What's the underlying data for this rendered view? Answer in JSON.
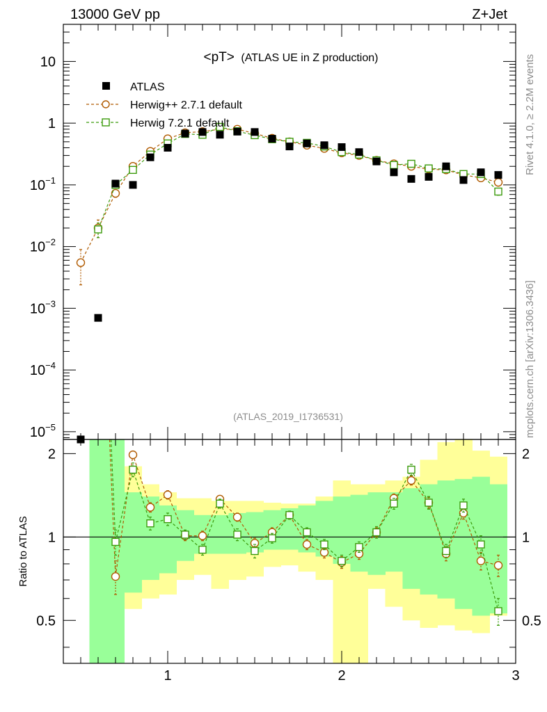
{
  "header": {
    "left": "13000 GeV pp",
    "right": "Z+Jet"
  },
  "side": {
    "rivet": "Rivet 4.1.0, ≥ 2.2M events",
    "mcplots": "mcplots.cern.ch [arXiv:1306.3436]"
  },
  "chart_data": [
    {
      "id": "main",
      "type": "scatter",
      "title": "<pT>",
      "subtitle": "(ATLAS UE in Z production)",
      "analysis": "(ATLAS_2019_I1736531)",
      "yscale": "log",
      "ylim": [
        7.5e-06,
        40
      ],
      "xlim": [
        0.4,
        3.0
      ],
      "yticks": [
        {
          "base": "10",
          "exp": "−5",
          "value": 1e-05
        },
        {
          "base": "10",
          "exp": "−4",
          "value": 0.0001
        },
        {
          "base": "10",
          "exp": "−3",
          "value": 0.001
        },
        {
          "base": "10",
          "exp": "−2",
          "value": 0.01
        },
        {
          "base": "10",
          "exp": "−1",
          "value": 0.1
        },
        {
          "base": "1",
          "exp": "",
          "value": 1
        },
        {
          "base": "10",
          "exp": "",
          "value": 10
        }
      ],
      "legend_position": "top-left",
      "series": [
        {
          "name": "ATLAS",
          "marker": "filled-square",
          "color": "#000000",
          "x": [
            0.5,
            0.6,
            0.7,
            0.8,
            0.9,
            1.0,
            1.1,
            1.2,
            1.3,
            1.4,
            1.5,
            1.6,
            1.7,
            1.8,
            1.9,
            2.0,
            2.1,
            2.2,
            2.3,
            2.4,
            2.5,
            2.6,
            2.7,
            2.8,
            2.9
          ],
          "y": [
            7.5e-06,
            0.0007,
            0.105,
            0.1,
            0.28,
            0.4,
            0.68,
            0.72,
            0.65,
            0.73,
            0.72,
            0.56,
            0.42,
            0.47,
            0.44,
            0.41,
            0.34,
            0.24,
            0.16,
            0.125,
            0.135,
            0.2,
            0.12,
            0.16,
            0.145
          ]
        },
        {
          "name": "Herwig++ 2.7.1 default",
          "marker": "open-circle",
          "color": "#b05a00",
          "x": [
            0.5,
            0.6,
            0.7,
            0.8,
            0.9,
            1.0,
            1.1,
            1.2,
            1.3,
            1.4,
            1.5,
            1.6,
            1.7,
            1.8,
            1.9,
            2.0,
            2.1,
            2.2,
            2.3,
            2.4,
            2.5,
            2.6,
            2.7,
            2.8,
            2.9
          ],
          "y": [
            0.0055,
            0.02,
            0.073,
            0.2,
            0.35,
            0.56,
            0.7,
            0.73,
            0.8,
            0.8,
            0.68,
            0.57,
            0.5,
            0.44,
            0.39,
            0.33,
            0.3,
            0.25,
            0.22,
            0.2,
            0.18,
            0.175,
            0.145,
            0.13,
            0.11
          ],
          "yerr_low": [
            0.0031,
            0.006,
            0.01,
            0.02,
            0.03,
            0.04,
            0.04,
            0.04,
            0.04,
            0.04,
            0.03,
            0.03,
            0.03,
            0.02,
            0.02,
            0.02,
            0.02,
            0.02,
            0.015,
            0.015,
            0.015,
            0.015,
            0.012,
            0.012,
            0.01
          ],
          "yerr_high": [
            0.0035,
            0.007,
            0.01,
            0.02,
            0.03,
            0.04,
            0.04,
            0.04,
            0.04,
            0.04,
            0.03,
            0.03,
            0.03,
            0.02,
            0.02,
            0.02,
            0.02,
            0.02,
            0.015,
            0.015,
            0.015,
            0.015,
            0.012,
            0.012,
            0.01
          ]
        },
        {
          "name": "Herwig 7.2.1 default",
          "marker": "open-square",
          "color": "#3a9a0a",
          "x": [
            0.5,
            0.6,
            0.7,
            0.8,
            0.9,
            1.0,
            1.1,
            1.2,
            1.3,
            1.4,
            1.5,
            1.6,
            1.7,
            1.8,
            1.9,
            2.0,
            2.1,
            2.2,
            2.3,
            2.4,
            2.5,
            2.6,
            2.7,
            2.8,
            2.9
          ],
          "y": [
            null,
            0.019,
            0.1,
            0.175,
            0.31,
            0.47,
            0.67,
            0.65,
            0.87,
            0.74,
            0.64,
            0.55,
            0.5,
            0.48,
            0.42,
            0.34,
            0.31,
            0.25,
            0.21,
            0.22,
            0.185,
            0.18,
            0.15,
            0.15,
            0.078
          ],
          "yerr_low": [
            null,
            0.005,
            0.01,
            0.02,
            0.03,
            0.04,
            0.04,
            0.04,
            0.04,
            0.04,
            0.03,
            0.03,
            0.03,
            0.02,
            0.02,
            0.02,
            0.02,
            0.02,
            0.015,
            0.015,
            0.015,
            0.015,
            0.012,
            0.012,
            0.01
          ],
          "yerr_high": [
            null,
            0.005,
            0.01,
            0.02,
            0.03,
            0.04,
            0.04,
            0.04,
            0.04,
            0.04,
            0.03,
            0.03,
            0.03,
            0.02,
            0.02,
            0.02,
            0.02,
            0.02,
            0.015,
            0.015,
            0.015,
            0.015,
            0.012,
            0.012,
            0.01
          ]
        }
      ]
    },
    {
      "id": "ratio",
      "type": "scatter",
      "ylabel": "Ratio to ATLAS",
      "ylim": [
        0.35,
        2.25
      ],
      "xlim": [
        0.4,
        3.0
      ],
      "yticks": [
        "0.5",
        "1",
        "2"
      ],
      "xticks": [
        "1",
        "2",
        "3"
      ],
      "reference_line": 1,
      "bands": {
        "x_low": [
          0.55,
          0.65,
          0.75,
          0.85,
          0.95,
          1.05,
          1.15,
          1.25,
          1.35,
          1.45,
          1.55,
          1.65,
          1.75,
          1.85,
          1.95,
          2.05,
          2.15,
          2.25,
          2.35,
          2.45,
          2.55,
          2.65,
          2.75,
          2.85
        ],
        "x_high": [
          0.65,
          0.75,
          0.85,
          0.95,
          1.05,
          1.15,
          1.25,
          1.35,
          1.45,
          1.55,
          1.65,
          1.75,
          1.85,
          1.95,
          2.05,
          2.15,
          2.25,
          2.35,
          2.45,
          2.55,
          2.65,
          2.75,
          2.85,
          2.95
        ],
        "inner_low": [
          0.35,
          0.35,
          0.63,
          0.7,
          0.74,
          0.82,
          0.87,
          0.87,
          0.87,
          0.88,
          0.9,
          0.9,
          0.88,
          0.85,
          0.8,
          0.75,
          0.73,
          0.75,
          0.65,
          0.62,
          0.6,
          0.55,
          0.52,
          0.53
        ],
        "inner_high": [
          2.25,
          2.25,
          1.45,
          1.4,
          1.3,
          1.25,
          1.2,
          1.2,
          1.22,
          1.23,
          1.25,
          1.27,
          1.3,
          1.35,
          1.4,
          1.42,
          1.45,
          1.45,
          1.5,
          1.55,
          1.6,
          1.62,
          1.65,
          1.55
        ],
        "outer_low": [
          0.35,
          0.35,
          0.55,
          0.6,
          0.62,
          0.7,
          0.73,
          0.65,
          0.7,
          0.72,
          0.78,
          0.79,
          0.75,
          0.7,
          0.35,
          0.35,
          0.65,
          0.56,
          0.5,
          0.47,
          0.48,
          0.46,
          0.45,
          0.52
        ],
        "outer_high": [
          2.25,
          2.25,
          1.8,
          1.55,
          1.45,
          1.38,
          1.38,
          1.35,
          1.35,
          1.35,
          1.33,
          1.32,
          1.32,
          1.4,
          1.6,
          1.55,
          1.55,
          1.6,
          1.65,
          1.9,
          2.2,
          2.25,
          2.05,
          1.95
        ],
        "inner_color": "#99ff99",
        "outer_color": "#ffff99"
      },
      "series": [
        {
          "name": "Herwig++ 2.7.1 default",
          "marker": "open-circle",
          "color": "#b05a00",
          "x": [
            0.7,
            0.8,
            0.9,
            1.0,
            1.1,
            1.2,
            1.3,
            1.4,
            1.5,
            1.6,
            1.7,
            1.8,
            1.9,
            2.0,
            2.1,
            2.2,
            2.3,
            2.4,
            2.5,
            2.6,
            2.7,
            2.8,
            2.9
          ],
          "y": [
            0.72,
            1.98,
            1.28,
            1.42,
            1.01,
            1.01,
            1.37,
            1.18,
            0.95,
            1.04,
            1.2,
            0.94,
            0.88,
            0.81,
            0.87,
            1.04,
            1.38,
            1.6,
            1.33,
            0.87,
            1.22,
            0.82,
            0.79
          ],
          "yerr_low": [
            0.1,
            0.06,
            0.05,
            0.05,
            0.04,
            0.04,
            0.04,
            0.04,
            0.04,
            0.04,
            0.04,
            0.04,
            0.04,
            0.04,
            0.04,
            0.04,
            0.05,
            0.06,
            0.06,
            0.05,
            0.06,
            0.06,
            0.07
          ],
          "yerr_high": [
            0.1,
            0.06,
            0.05,
            0.05,
            0.04,
            0.04,
            0.04,
            0.04,
            0.04,
            0.04,
            0.04,
            0.04,
            0.04,
            0.04,
            0.04,
            0.04,
            0.05,
            0.06,
            0.06,
            0.05,
            0.06,
            0.06,
            0.07
          ]
        },
        {
          "name": "Herwig 7.2.1 default",
          "marker": "open-square",
          "color": "#3a9a0a",
          "x": [
            0.7,
            0.8,
            0.9,
            1.0,
            1.1,
            1.2,
            1.3,
            1.4,
            1.5,
            1.6,
            1.7,
            1.8,
            1.9,
            2.0,
            2.1,
            2.2,
            2.3,
            2.4,
            2.5,
            2.6,
            2.7,
            2.8,
            2.9
          ],
          "y": [
            0.96,
            1.75,
            1.12,
            1.16,
            1.02,
            0.9,
            1.32,
            1.02,
            0.89,
            0.99,
            1.2,
            1.04,
            0.94,
            0.82,
            0.92,
            1.04,
            1.32,
            1.75,
            1.33,
            0.89,
            1.3,
            0.94,
            0.54
          ],
          "yerr_low": [
            0.1,
            0.1,
            0.06,
            0.06,
            0.04,
            0.04,
            0.05,
            0.05,
            0.05,
            0.04,
            0.04,
            0.04,
            0.04,
            0.04,
            0.04,
            0.05,
            0.06,
            0.08,
            0.07,
            0.05,
            0.07,
            0.07,
            0.06
          ],
          "yerr_high": [
            0.1,
            0.1,
            0.06,
            0.06,
            0.04,
            0.04,
            0.05,
            0.05,
            0.05,
            0.04,
            0.04,
            0.04,
            0.04,
            0.04,
            0.04,
            0.05,
            0.06,
            0.08,
            0.07,
            0.05,
            0.07,
            0.07,
            0.06
          ]
        }
      ]
    }
  ]
}
